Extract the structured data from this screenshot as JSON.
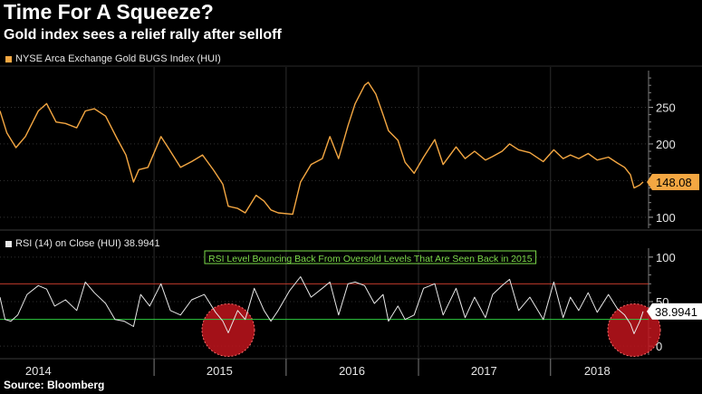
{
  "header": {
    "title": "Time For A Squeeze?",
    "subtitle": "Gold index sees a relief rally after selloff"
  },
  "source": "Source: Bloomberg",
  "colors": {
    "price_line": "#f4a742",
    "rsi_line": "#e8e8e8",
    "overbought_line": "#c0392b",
    "oversold_line": "#2ecc40",
    "annotation": "#7ddc4a",
    "circle_fill": "#c0141c",
    "last_price_label_bg": "#f4a742"
  },
  "chart_data": [
    {
      "type": "line",
      "legend": "NYSE Arca Exchange Gold BUGS Index (HUI)",
      "ylim": [
        85,
        300
      ],
      "yticks": [
        100,
        150,
        200,
        250
      ],
      "last_value": 148.08,
      "x_range": [
        "2013-11-01",
        "2018-09-14"
      ],
      "series": [
        {
          "values": [
            [
              "2013-11-01",
              245
            ],
            [
              "2013-11-20",
              215
            ],
            [
              "2013-12-15",
              195
            ],
            [
              "2014-01-10",
              210
            ],
            [
              "2014-02-15",
              245
            ],
            [
              "2014-03-10",
              255
            ],
            [
              "2014-04-05",
              230
            ],
            [
              "2014-05-01",
              228
            ],
            [
              "2014-06-01",
              222
            ],
            [
              "2014-06-25",
              245
            ],
            [
              "2014-07-20",
              248
            ],
            [
              "2014-08-20",
              238
            ],
            [
              "2014-09-20",
              208
            ],
            [
              "2014-10-15",
              185
            ],
            [
              "2014-11-05",
              148
            ],
            [
              "2014-11-20",
              165
            ],
            [
              "2014-12-15",
              168
            ],
            [
              "2015-01-20",
              210
            ],
            [
              "2015-02-10",
              194
            ],
            [
              "2015-03-15",
              168
            ],
            [
              "2015-04-15",
              176
            ],
            [
              "2015-05-15",
              185
            ],
            [
              "2015-06-15",
              164
            ],
            [
              "2015-07-10",
              145
            ],
            [
              "2015-07-25",
              115
            ],
            [
              "2015-08-20",
              112
            ],
            [
              "2015-09-10",
              106
            ],
            [
              "2015-10-10",
              130
            ],
            [
              "2015-11-01",
              122
            ],
            [
              "2015-11-20",
              110
            ],
            [
              "2015-12-10",
              106
            ],
            [
              "2016-01-19",
              104
            ],
            [
              "2016-02-10",
              148
            ],
            [
              "2016-03-10",
              172
            ],
            [
              "2016-04-10",
              180
            ],
            [
              "2016-05-01",
              210
            ],
            [
              "2016-05-25",
              180
            ],
            [
              "2016-06-20",
              225
            ],
            [
              "2016-07-10",
              255
            ],
            [
              "2016-08-05",
              280
            ],
            [
              "2016-08-15",
              284
            ],
            [
              "2016-09-05",
              268
            ],
            [
              "2016-09-25",
              240
            ],
            [
              "2016-10-10",
              218
            ],
            [
              "2016-11-05",
              205
            ],
            [
              "2016-11-25",
              175
            ],
            [
              "2016-12-20",
              160
            ],
            [
              "2017-01-15",
              182
            ],
            [
              "2017-02-15",
              206
            ],
            [
              "2017-03-10",
              172
            ],
            [
              "2017-04-15",
              196
            ],
            [
              "2017-05-10",
              180
            ],
            [
              "2017-06-05",
              190
            ],
            [
              "2017-07-05",
              178
            ],
            [
              "2017-07-25",
              183
            ],
            [
              "2017-08-20",
              190
            ],
            [
              "2017-09-10",
              200
            ],
            [
              "2017-10-05",
              192
            ],
            [
              "2017-11-05",
              188
            ],
            [
              "2017-12-12",
              176
            ],
            [
              "2018-01-10",
              192
            ],
            [
              "2018-02-05",
              180
            ],
            [
              "2018-02-25",
              185
            ],
            [
              "2018-03-20",
              180
            ],
            [
              "2018-04-15",
              187
            ],
            [
              "2018-05-10",
              178
            ],
            [
              "2018-06-10",
              182
            ],
            [
              "2018-07-05",
              174
            ],
            [
              "2018-07-25",
              168
            ],
            [
              "2018-08-10",
              158
            ],
            [
              "2018-08-20",
              140
            ],
            [
              "2018-09-05",
              144
            ],
            [
              "2018-09-14",
              148.08
            ]
          ]
        }
      ]
    },
    {
      "type": "line",
      "legend": "RSI (14)   on Close (HUI) 38.9941",
      "ylim": [
        -10,
        110
      ],
      "yticks": [
        0,
        50,
        100
      ],
      "last_value": 38.9941,
      "reference_lines": [
        70,
        30
      ],
      "annotation": "RSI Level Bouncing Back From Oversold Levels That Are Seen Back in 2015",
      "highlighted_regions": [
        {
          "x": "2015-07-25",
          "y": 18
        },
        {
          "x": "2018-08-20",
          "y": 18
        }
      ],
      "x_range": [
        "2013-11-01",
        "2018-09-14"
      ],
      "series": [
        {
          "values": [
            [
              "2013-11-01",
              55
            ],
            [
              "2013-11-15",
              30
            ],
            [
              "2013-12-01",
              28
            ],
            [
              "2013-12-20",
              35
            ],
            [
              "2014-01-15",
              58
            ],
            [
              "2014-02-15",
              68
            ],
            [
              "2014-03-10",
              64
            ],
            [
              "2014-04-01",
              45
            ],
            [
              "2014-05-01",
              52
            ],
            [
              "2014-06-01",
              40
            ],
            [
              "2014-06-25",
              72
            ],
            [
              "2014-07-20",
              60
            ],
            [
              "2014-08-20",
              48
            ],
            [
              "2014-09-15",
              30
            ],
            [
              "2014-10-10",
              28
            ],
            [
              "2014-11-05",
              22
            ],
            [
              "2014-11-25",
              58
            ],
            [
              "2014-12-20",
              45
            ],
            [
              "2015-01-20",
              70
            ],
            [
              "2015-02-15",
              40
            ],
            [
              "2015-03-15",
              35
            ],
            [
              "2015-04-15",
              52
            ],
            [
              "2015-05-20",
              58
            ],
            [
              "2015-06-20",
              38
            ],
            [
              "2015-07-10",
              28
            ],
            [
              "2015-07-25",
              15
            ],
            [
              "2015-08-20",
              40
            ],
            [
              "2015-09-10",
              30
            ],
            [
              "2015-10-05",
              65
            ],
            [
              "2015-11-01",
              40
            ],
            [
              "2015-11-20",
              28
            ],
            [
              "2015-12-10",
              40
            ],
            [
              "2016-01-10",
              62
            ],
            [
              "2016-02-10",
              78
            ],
            [
              "2016-03-10",
              55
            ],
            [
              "2016-04-10",
              65
            ],
            [
              "2016-05-01",
              72
            ],
            [
              "2016-05-25",
              35
            ],
            [
              "2016-06-20",
              70
            ],
            [
              "2016-07-10",
              72
            ],
            [
              "2016-08-05",
              68
            ],
            [
              "2016-09-01",
              48
            ],
            [
              "2016-09-25",
              58
            ],
            [
              "2016-10-10",
              28
            ],
            [
              "2016-11-05",
              45
            ],
            [
              "2016-11-25",
              30
            ],
            [
              "2016-12-20",
              35
            ],
            [
              "2017-01-15",
              65
            ],
            [
              "2017-02-15",
              70
            ],
            [
              "2017-03-10",
              35
            ],
            [
              "2017-04-15",
              65
            ],
            [
              "2017-05-10",
              32
            ],
            [
              "2017-06-05",
              55
            ],
            [
              "2017-07-05",
              32
            ],
            [
              "2017-07-25",
              58
            ],
            [
              "2017-08-20",
              68
            ],
            [
              "2017-09-10",
              75
            ],
            [
              "2017-10-05",
              40
            ],
            [
              "2017-11-05",
              55
            ],
            [
              "2017-12-12",
              30
            ],
            [
              "2018-01-10",
              72
            ],
            [
              "2018-02-05",
              32
            ],
            [
              "2018-02-25",
              55
            ],
            [
              "2018-03-20",
              40
            ],
            [
              "2018-04-15",
              60
            ],
            [
              "2018-05-10",
              38
            ],
            [
              "2018-06-10",
              58
            ],
            [
              "2018-07-05",
              42
            ],
            [
              "2018-07-25",
              35
            ],
            [
              "2018-08-10",
              25
            ],
            [
              "2018-08-20",
              14
            ],
            [
              "2018-09-05",
              28
            ],
            [
              "2018-09-14",
              38.9941
            ]
          ]
        }
      ]
    }
  ],
  "x_axis": {
    "year_labels": [
      {
        "label": "2014",
        "date": "2014-02-15"
      },
      {
        "label": "2015",
        "date": "2015-07-01"
      },
      {
        "label": "2016",
        "date": "2016-07-01"
      },
      {
        "label": "2017",
        "date": "2017-07-01"
      },
      {
        "label": "2018",
        "date": "2018-05-10"
      }
    ],
    "year_boundaries": [
      "2015-01-01",
      "2016-01-01",
      "2017-01-01",
      "2018-01-01"
    ]
  }
}
